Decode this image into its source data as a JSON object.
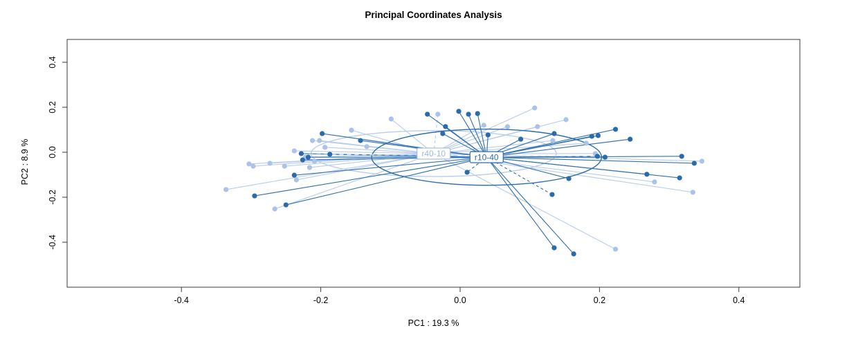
{
  "chart_data": {
    "type": "scatter",
    "title": "Principal Coordinates Analysis",
    "xlabel": "PC1 : 19.3 %",
    "ylabel": "PC2 : 8.9 %",
    "xlim": [
      -0.564,
      0.488
    ],
    "ylim": [
      -0.6,
      0.5
    ],
    "x_ticks": [
      "-0.4",
      "-0.2",
      "0.0",
      "0.2",
      "0.4"
    ],
    "y_ticks": [
      "-0.4",
      "-0.2",
      "0.0",
      "0.2",
      "0.4"
    ],
    "grid": false,
    "legend_position": "none (group labels drawn at centroids)",
    "colors": {
      "light_point": "#aac3e6",
      "light_line": "#b9cdec",
      "light_label": "#9fb9e0",
      "dark_point": "#2a6cab",
      "dark_line": "#3474b0",
      "frame": "#3a3a3a",
      "text": "#000000",
      "label_box_fill": "#ffffff"
    },
    "dashed_center_line": {
      "from": [
        -0.228,
        -0.009
      ],
      "to": [
        0.202,
        -0.018
      ]
    },
    "groups": [
      {
        "name": "r40-10",
        "role": "light",
        "centroid": [
          -0.038,
          -0.006
        ],
        "ellipse_rx": 0.176,
        "ellipse_ry": 0.102,
        "points": [
          [
            -0.336,
            -0.166
          ],
          [
            -0.303,
            -0.052
          ],
          [
            -0.297,
            -0.062
          ],
          [
            -0.273,
            -0.049
          ],
          [
            -0.266,
            -0.252
          ],
          [
            -0.252,
            -0.062
          ],
          [
            -0.238,
            0.006
          ],
          [
            -0.235,
            -0.123
          ],
          [
            -0.222,
            -0.022
          ],
          [
            -0.216,
            -0.068
          ],
          [
            -0.212,
            0.052
          ],
          [
            -0.209,
            -0.04
          ],
          [
            -0.202,
            0.052
          ],
          [
            -0.194,
            0.022
          ],
          [
            -0.156,
            0.098
          ],
          [
            -0.134,
            0.025
          ],
          [
            -0.099,
            0.148
          ],
          [
            -0.032,
            0.169,
            1
          ],
          [
            0.034,
            0.12
          ],
          [
            0.068,
            0.114
          ],
          [
            0.107,
            0.197
          ],
          [
            0.111,
            0.114
          ],
          [
            0.133,
            0.052
          ],
          [
            0.152,
            0.145
          ],
          [
            0.181,
            0.04
          ],
          [
            0.194,
            -0.006
          ],
          [
            0.279,
            -0.132
          ],
          [
            0.334,
            -0.178
          ],
          [
            0.347,
            -0.04
          ],
          [
            0.223,
            -0.431
          ]
        ]
      },
      {
        "name": "r10-40",
        "role": "dark",
        "centroid": [
          0.038,
          -0.022
        ],
        "ellipse_rx": 0.165,
        "ellipse_ry": 0.125,
        "points": [
          [
            -0.295,
            -0.194
          ],
          [
            -0.25,
            -0.234
          ],
          [
            -0.238,
            -0.102
          ],
          [
            -0.228,
            -0.006
          ],
          [
            -0.226,
            -0.034
          ],
          [
            -0.218,
            -0.022
          ],
          [
            -0.198,
            0.083
          ],
          [
            -0.187,
            -0.009
          ],
          [
            -0.143,
            0.052
          ],
          [
            -0.047,
            0.169
          ],
          [
            -0.025,
            0.083
          ],
          [
            -0.021,
            0.114
          ],
          [
            -0.002,
            0.182
          ],
          [
            0.012,
            0.169
          ],
          [
            0.025,
            0.172
          ],
          [
            0.04,
            0.077
          ],
          [
            0.087,
            0.058
          ],
          [
            0.01,
            -0.089,
            1
          ],
          [
            0.135,
            0.083
          ],
          [
            0.156,
            -0.117
          ],
          [
            0.132,
            -0.188,
            1
          ],
          [
            0.189,
            0.071
          ],
          [
            0.198,
            0.074
          ],
          [
            0.223,
            0.102
          ],
          [
            0.244,
            0.058
          ],
          [
            0.197,
            -0.018
          ],
          [
            0.208,
            -0.022
          ],
          [
            0.268,
            -0.098
          ],
          [
            0.315,
            -0.114
          ],
          [
            0.318,
            -0.018
          ],
          [
            0.336,
            -0.049
          ],
          [
            0.135,
            -0.425
          ],
          [
            0.163,
            -0.452
          ]
        ]
      }
    ]
  }
}
